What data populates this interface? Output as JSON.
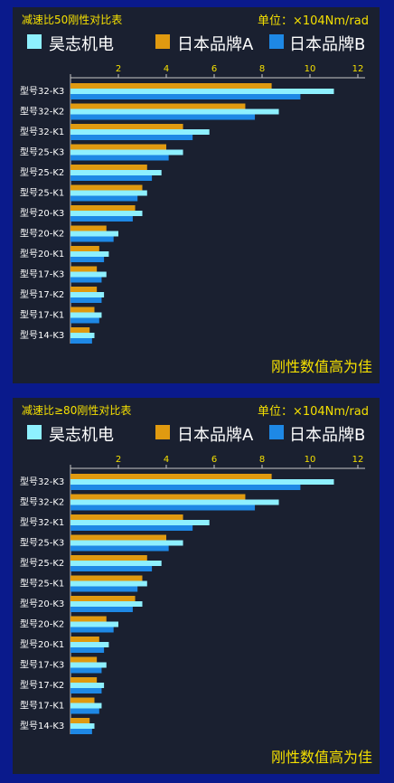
{
  "colors": {
    "background": "#0a1a8c",
    "panel": "#1a2030",
    "accent_text": "#f5e000"
  },
  "panels": [
    {
      "title": "减速比50刚性对比表",
      "unit": "单位：×104Nm/rad",
      "note": "刚性数值高为佳"
    },
    {
      "title": "减速比≥80刚性对比表",
      "unit": "单位：×104Nm/rad",
      "note": "刚性数值高为佳"
    }
  ],
  "chart_data": [
    {
      "type": "bar",
      "orientation": "horizontal",
      "title": "减速比50刚性对比表",
      "unit": "单位：×104Nm/rad",
      "annotation": "刚性数值高为佳",
      "legend_placement": "top",
      "xlim": [
        0,
        12
      ],
      "x_ticks": [
        0,
        2,
        4,
        6,
        8,
        10,
        12
      ],
      "categories": [
        "型号32-K3",
        "型号32-K2",
        "型号32-K1",
        "型号25-K3",
        "型号25-K2",
        "型号25-K1",
        "型号20-K3",
        "型号20-K2",
        "型号20-K1",
        "型号17-K3",
        "型号17-K2",
        "型号17-K1",
        "型号14-K3",
        "型号14-K2",
        "型号14-K1"
      ],
      "series": [
        {
          "name": "日本品牌A",
          "color": "#e09a10",
          "values": [
            8.4,
            7.3,
            4.7,
            4.0,
            3.2,
            3.0,
            2.7,
            1.5,
            1.2,
            1.1,
            1.1,
            1.0,
            0.8,
            0.7,
            0.5
          ]
        },
        {
          "name": "昊志机电",
          "color": "#8ef0ff",
          "values": [
            11.0,
            8.7,
            5.8,
            4.7,
            3.8,
            3.2,
            3.0,
            2.0,
            1.6,
            1.5,
            1.4,
            1.3,
            1.0,
            0.9,
            0.7
          ]
        },
        {
          "name": "日本品牌B",
          "color": "#1e88e5",
          "values": [
            9.6,
            7.7,
            5.1,
            4.1,
            3.4,
            2.8,
            2.6,
            1.8,
            1.4,
            1.3,
            1.3,
            1.2,
            0.9,
            0.8,
            0.6
          ]
        }
      ]
    },
    {
      "type": "bar",
      "orientation": "horizontal",
      "title": "减速比≥80刚性对比表",
      "unit": "单位：×104Nm/rad",
      "annotation": "刚性数值高为佳",
      "legend_placement": "top",
      "xlim": [
        0,
        12
      ],
      "x_ticks": [
        0,
        2,
        4,
        6,
        8,
        10,
        12
      ],
      "categories": [
        "型号32-K3",
        "型号32-K2",
        "型号32-K1",
        "型号25-K3",
        "型号25-K2",
        "型号25-K1",
        "型号20-K3",
        "型号20-K2",
        "型号20-K1",
        "型号17-K3",
        "型号17-K2",
        "型号17-K1",
        "型号14-K3",
        "型号14-K2",
        "型号14-K1"
      ],
      "series": [
        {
          "name": "日本品牌A",
          "color": "#e09a10",
          "values": [
            8.4,
            7.3,
            4.7,
            4.0,
            3.2,
            3.0,
            2.7,
            1.5,
            1.2,
            1.1,
            1.1,
            1.0,
            0.8,
            0.7,
            0.5
          ]
        },
        {
          "name": "昊志机电",
          "color": "#8ef0ff",
          "values": [
            11.0,
            8.7,
            5.8,
            4.7,
            3.8,
            3.2,
            3.0,
            2.0,
            1.6,
            1.5,
            1.4,
            1.3,
            1.0,
            0.9,
            0.7
          ]
        },
        {
          "name": "日本品牌B",
          "color": "#1e88e5",
          "values": [
            9.6,
            7.7,
            5.1,
            4.1,
            3.4,
            2.8,
            2.6,
            1.8,
            1.4,
            1.3,
            1.3,
            1.2,
            0.9,
            0.8,
            0.6
          ]
        }
      ]
    }
  ]
}
